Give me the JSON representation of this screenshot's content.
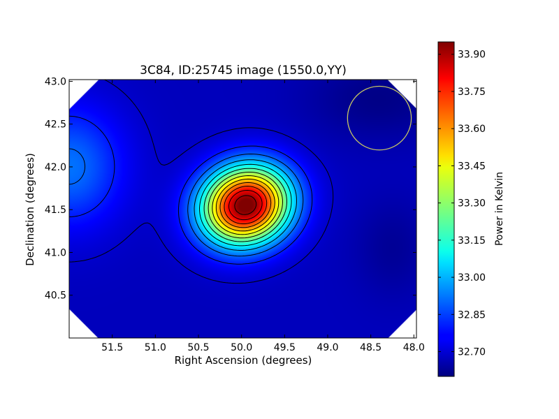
{
  "chart_data": {
    "type": "heatmap",
    "title": "3C84, ID:25745 image (1550.0,YY)",
    "xlabel": "Right Ascension (degrees)",
    "ylabel": "Declination (degrees)",
    "xlim": [
      52.0,
      47.97
    ],
    "ylim": [
      40.0,
      43.02
    ],
    "x_reversed": true,
    "x_ticks": [
      51.5,
      51.0,
      50.5,
      50.0,
      49.5,
      49.0,
      48.5,
      48.0
    ],
    "x_tick_labels": [
      "51.5",
      "51.0",
      "50.5",
      "50.0",
      "49.5",
      "49.0",
      "48.5",
      "48.0"
    ],
    "y_ticks": [
      40.5,
      41.0,
      41.5,
      42.0,
      42.5,
      43.0
    ],
    "y_tick_labels": [
      "40.5",
      "41.0",
      "41.5",
      "42.0",
      "42.5",
      "43.0"
    ],
    "colormap": "jet",
    "value_range": [
      32.6,
      33.95
    ],
    "peak": {
      "ra": 49.95,
      "dec": 41.55,
      "value": 33.93
    },
    "secondary_bright_region": {
      "ra": 52.0,
      "dec": 42.0
    },
    "contour_levels": [
      32.7,
      32.8,
      32.9,
      33.0,
      33.1,
      33.2,
      33.3,
      33.4,
      33.5,
      33.6,
      33.7,
      33.8,
      33.9
    ],
    "beam_circle": {
      "ra": 48.4,
      "dec": 42.57,
      "radius_deg": 0.37,
      "color": "#c8c864"
    },
    "colorbar": {
      "label": "Power in Kelvin",
      "ticks": [
        32.7,
        32.85,
        33.0,
        33.15,
        33.3,
        33.45,
        33.6,
        33.75,
        33.9
      ],
      "tick_labels": [
        "32.70",
        "32.85",
        "33.00",
        "33.15",
        "33.30",
        "33.45",
        "33.60",
        "33.75",
        "33.90"
      ],
      "range": [
        32.6,
        33.95
      ]
    },
    "grid": false,
    "legend": "none"
  }
}
